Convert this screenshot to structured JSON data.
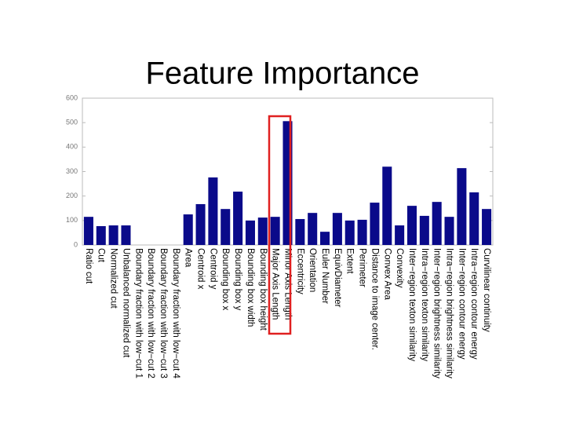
{
  "chart_data": {
    "type": "bar",
    "title": "Feature Importance",
    "categories": [
      "Ratio cut",
      "Cut",
      "Normalized cut",
      "Unbalanced normalized cut",
      "Boundary fraction with low−cut 1",
      "Boundary fraction with low−cut 2",
      "Boundary fraction with low−cut 3",
      "Boundary fraction with low−cut 4",
      "Area",
      "Centroid x",
      "Centroid y",
      "Bounding box x",
      "Bounding box y",
      "Bounding box width",
      "Bounding box height",
      "Major Axis Length",
      "Minor Axis Length",
      "Eccentricity",
      "Orientation",
      "Euler Number",
      "EquivDiameter",
      "Extent",
      "Perimeter",
      "Distance to image center.",
      "Convex Area",
      "Convexity",
      "Inter−region texton similarity",
      "Intra−region texton similarity",
      "Inter−region brightness similarity",
      "Intra−region brightness similarity",
      "Inter−region contour energy",
      "Intra−region contour energy",
      "Curvilinear continuity"
    ],
    "values": [
      115,
      77,
      80,
      80,
      0,
      0,
      0,
      0,
      125,
      167,
      276,
      147,
      218,
      100,
      112,
      115,
      506,
      106,
      131,
      54,
      131,
      100,
      103,
      173,
      320,
      80,
      160,
      119,
      176,
      115,
      314,
      215,
      147
    ],
    "color": "#0a0a8a",
    "ylim": [
      0,
      600
    ],
    "yticks": [
      0,
      100,
      200,
      300,
      400,
      500,
      600
    ],
    "grid": false
  }
}
